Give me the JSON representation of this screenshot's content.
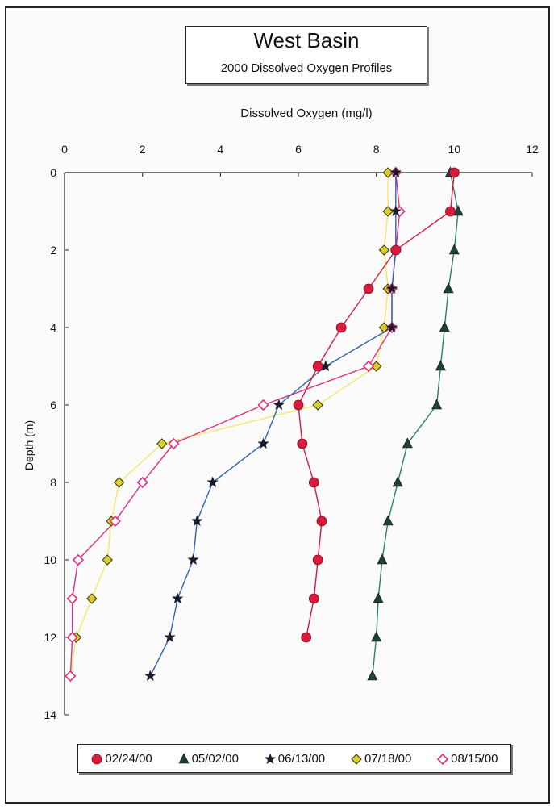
{
  "chart_data": {
    "type": "line",
    "title": "West Basin",
    "subtitle": "2000 Dissolved Oxygen Profiles",
    "xlabel": "Dissolved Oxygen (mg/l)",
    "ylabel": "Depth (m)",
    "xlim": [
      0,
      12
    ],
    "ylim": [
      0,
      14
    ],
    "x_axis_position": "top",
    "y_axis_inverted": true,
    "x_ticks": [
      0,
      2,
      4,
      6,
      8,
      10,
      12
    ],
    "y_ticks": [
      0,
      2,
      4,
      6,
      8,
      10,
      12,
      14
    ],
    "legend_position": "bottom",
    "series": [
      {
        "name": "02/24/00",
        "color": "#d81b3c",
        "marker": "circle",
        "depth": [
          0,
          1,
          2,
          3,
          4,
          5,
          6,
          7,
          8,
          9,
          10,
          11,
          12
        ],
        "do": [
          10.0,
          9.9,
          8.5,
          7.8,
          7.1,
          6.5,
          6.0,
          6.1,
          6.4,
          6.6,
          6.5,
          6.4,
          6.2
        ]
      },
      {
        "name": "05/02/00",
        "color": "#2f7d6b",
        "marker": "triangle",
        "depth": [
          0,
          1,
          2,
          3,
          4,
          5,
          6,
          7,
          8,
          9,
          10,
          11,
          12,
          13
        ],
        "do": [
          9.9,
          10.1,
          10.0,
          9.85,
          9.75,
          9.65,
          9.55,
          8.8,
          8.55,
          8.3,
          8.15,
          8.05,
          8.0,
          7.9
        ]
      },
      {
        "name": "06/13/00",
        "color": "#2f64b4",
        "marker": "star",
        "depth": [
          0,
          1,
          2,
          3,
          4,
          5,
          6,
          7,
          8,
          9,
          10,
          11,
          12,
          13
        ],
        "do": [
          8.5,
          8.5,
          8.5,
          8.4,
          8.4,
          6.7,
          5.5,
          5.1,
          3.8,
          3.4,
          3.3,
          2.9,
          2.7,
          2.2
        ]
      },
      {
        "name": "07/18/00",
        "color": "#f0e040",
        "marker": "diamond",
        "depth": [
          0,
          1,
          2,
          3,
          4,
          5,
          6,
          7,
          8,
          9,
          10,
          11,
          12,
          13
        ],
        "do": [
          8.3,
          8.3,
          8.2,
          8.3,
          8.2,
          8.0,
          6.5,
          2.5,
          1.4,
          1.2,
          1.1,
          0.7,
          0.3,
          0.15
        ]
      },
      {
        "name": "08/15/00",
        "color": "#e0307f",
        "marker": "open-diamond",
        "depth": [
          0,
          1,
          2,
          3,
          4,
          5,
          6,
          7,
          8,
          9,
          10,
          11,
          12,
          13
        ],
        "do": [
          8.5,
          8.6,
          8.5,
          8.4,
          8.4,
          7.8,
          5.1,
          2.8,
          2.0,
          1.3,
          0.35,
          0.2,
          0.2,
          0.15
        ]
      }
    ]
  }
}
